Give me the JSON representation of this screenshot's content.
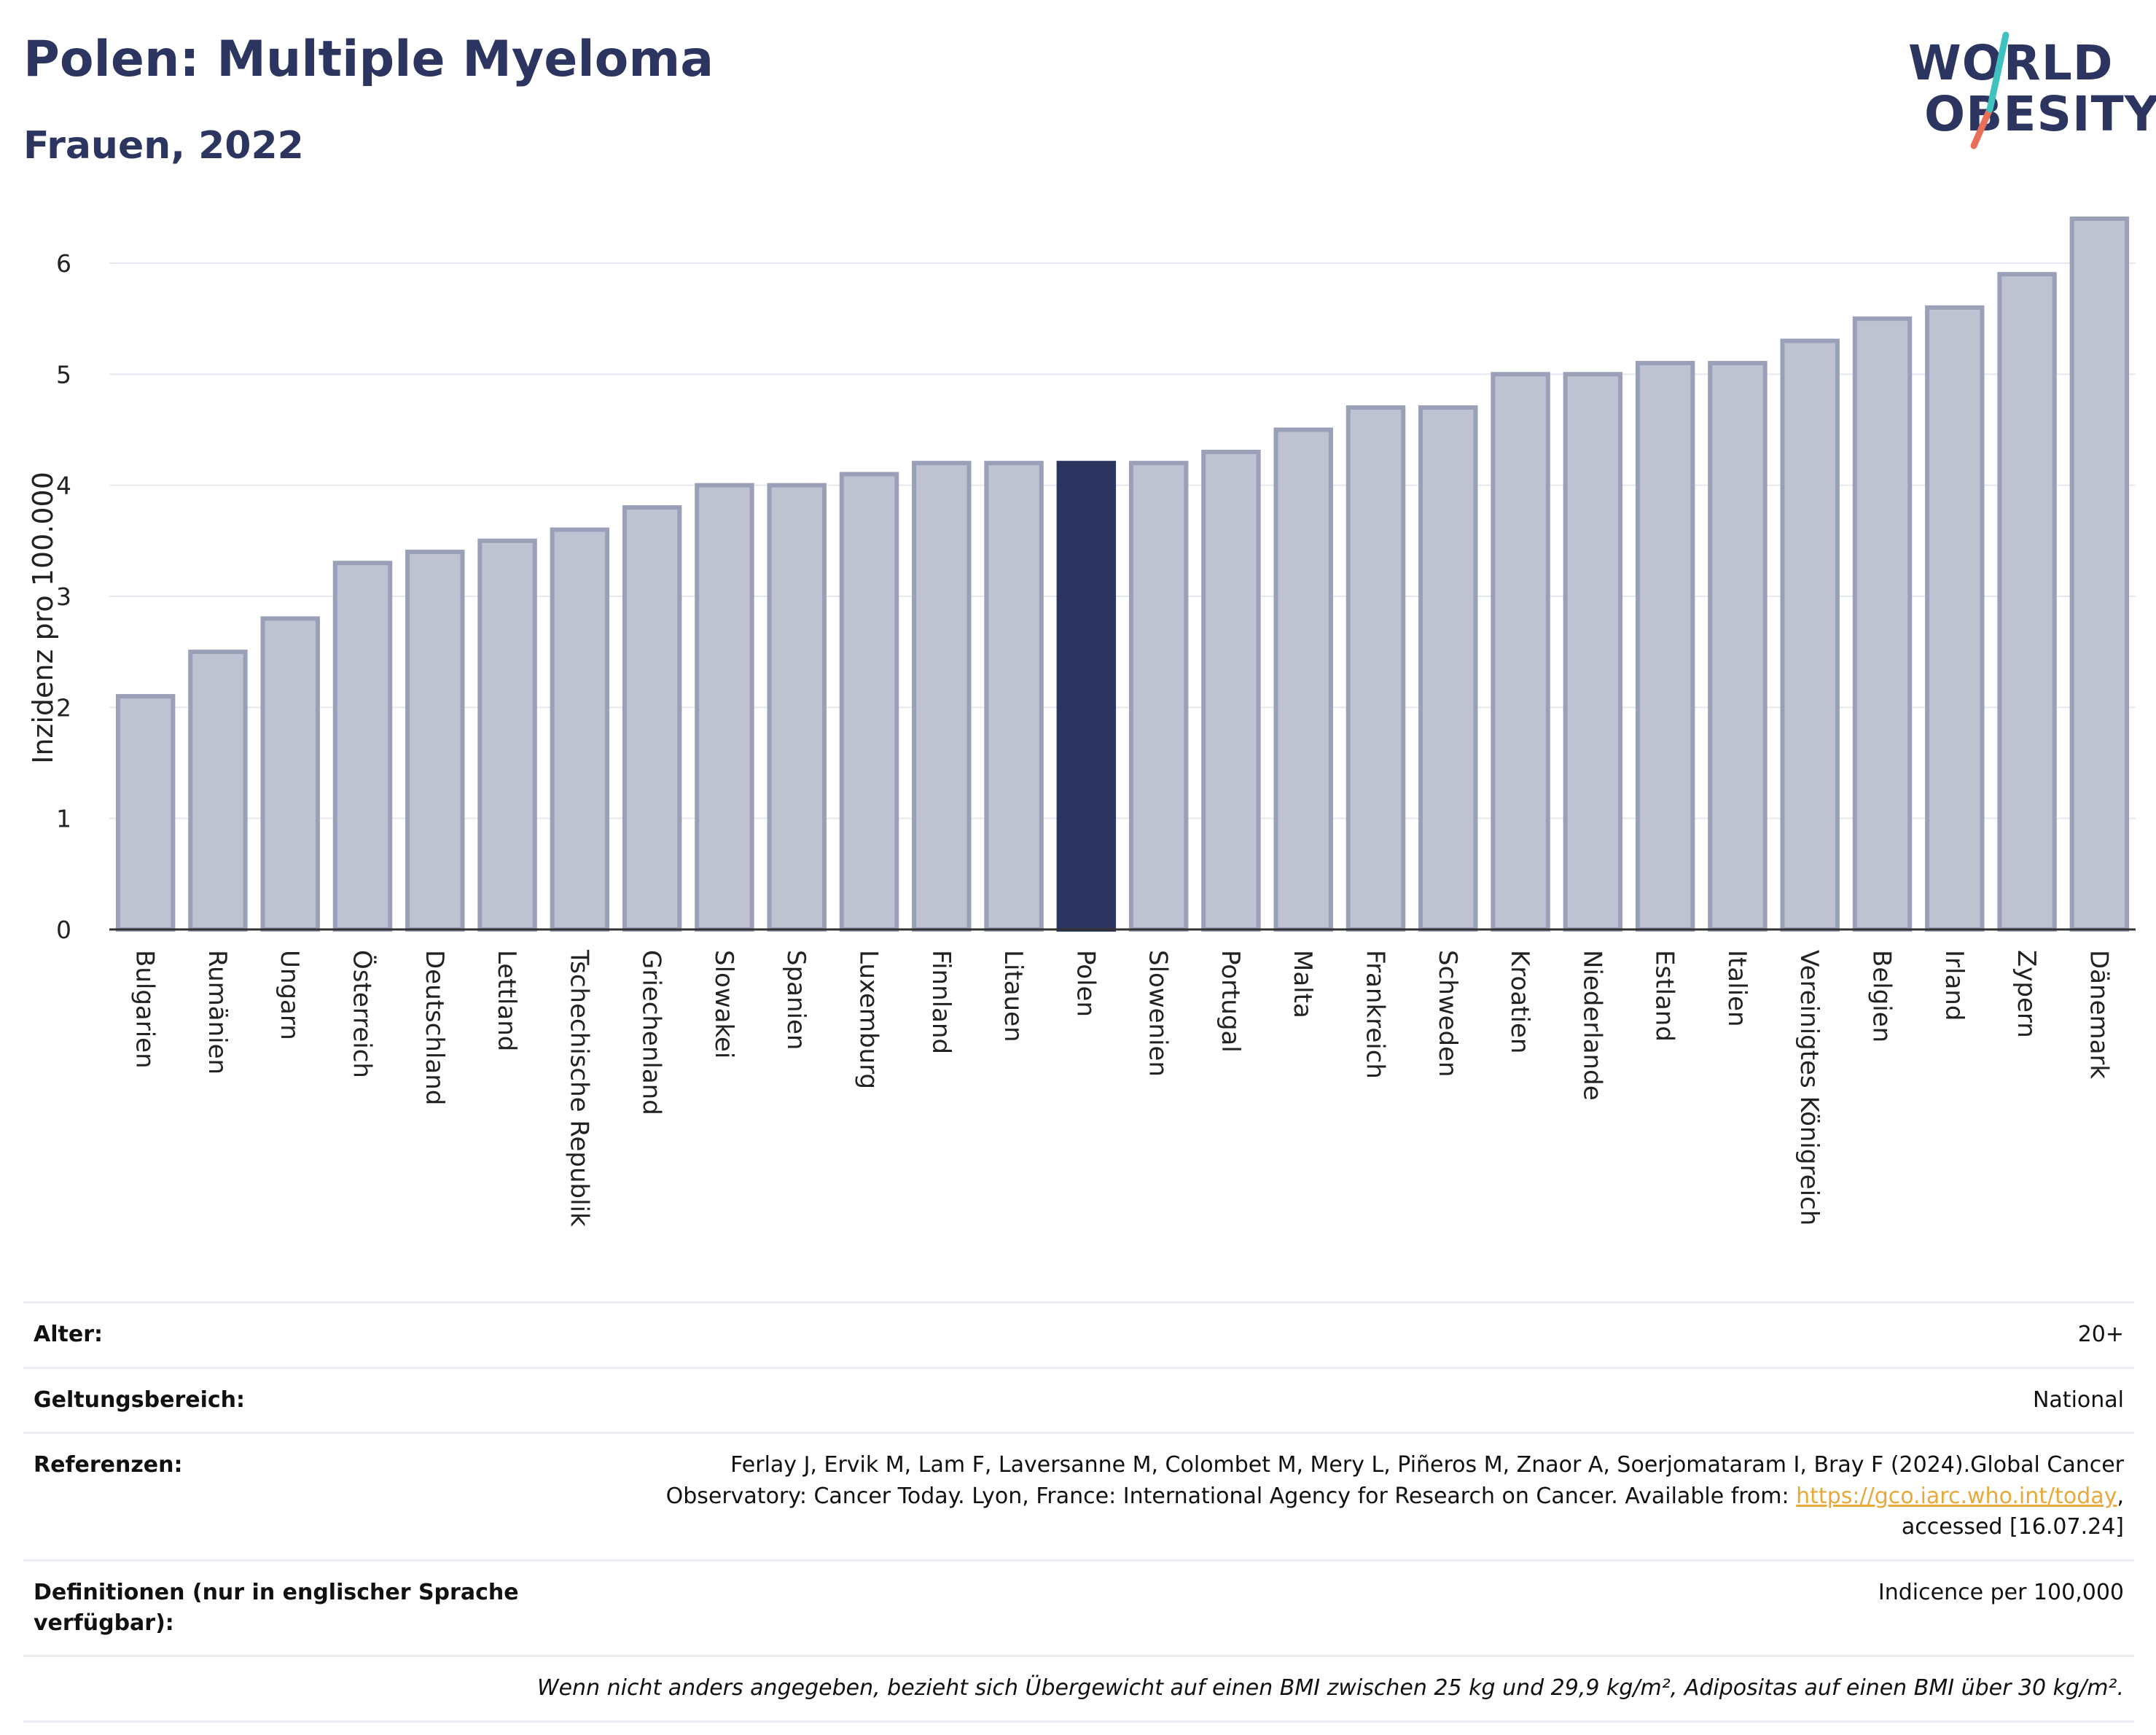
{
  "header": {
    "title": "Polen: Multiple Myeloma",
    "subtitle": "Frauen, 2022"
  },
  "logo": {
    "line1": "WORLD",
    "line2": "OBESITY",
    "colors": {
      "navy": "#2b3560",
      "teal": "#3fc1c0",
      "coral": "#e8705a"
    }
  },
  "colors": {
    "bar_fill": "#bfc2d0",
    "bar_stroke": "#9aa0b8",
    "highlight": "#2b3560",
    "grid": "#e6e8ef",
    "axis": "#333333"
  },
  "chart_data": {
    "type": "bar",
    "ylabel": "Inzidenz pro 100.000",
    "xlabel": "",
    "ylim": [
      0,
      6.4
    ],
    "yticks": [
      0,
      1,
      2,
      3,
      4,
      5,
      6
    ],
    "grid": true,
    "highlight": "Polen",
    "categories": [
      "Bulgarien",
      "Rumänien",
      "Ungarn",
      "Österreich",
      "Deutschland",
      "Lettland",
      "Tschechische Republik",
      "Griechenland",
      "Slowakei",
      "Spanien",
      "Luxemburg",
      "Finnland",
      "Litauen",
      "Polen",
      "Slowenien",
      "Portugal",
      "Malta",
      "Frankreich",
      "Schweden",
      "Kroatien",
      "Niederlande",
      "Estland",
      "Italien",
      "Vereinigtes Königreich",
      "Belgien",
      "Irland",
      "Zypern",
      "Dänemark"
    ],
    "values": [
      2.1,
      2.5,
      2.8,
      3.3,
      3.4,
      3.5,
      3.6,
      3.8,
      4.0,
      4.0,
      4.1,
      4.2,
      4.2,
      4.2,
      4.2,
      4.3,
      4.5,
      4.7,
      4.7,
      5.0,
      5.0,
      5.1,
      5.1,
      5.3,
      5.5,
      5.6,
      5.9,
      6.4
    ]
  },
  "info": {
    "age_label": "Alter:",
    "age_value": "20+",
    "scope_label": "Geltungsbereich:",
    "scope_value": "National",
    "ref_label": "Referenzen:",
    "ref_text_1": "Ferlay J, Ervik M, Lam F, Laversanne M, Colombet M, Mery L, Piñeros M, Znaor A, Soerjomataram I, Bray F (2024).Global Cancer",
    "ref_text_2": "Observatory: Cancer Today. Lyon, France: International Agency for Research on Cancer. Available from: ",
    "ref_link": "https://gco.iarc.who.int/today",
    "ref_text_3": ",",
    "ref_text_4": "accessed [16.07.24]",
    "def_label": "Definitionen (nur in englischer Sprache verfügbar):",
    "def_value": "Indicence per 100,000",
    "note": "Wenn nicht anders angegeben, bezieht sich Übergewicht auf einen BMI zwischen 25 kg und 29,9 kg/m², Adipositas auf einen BMI über 30 kg/m²."
  }
}
